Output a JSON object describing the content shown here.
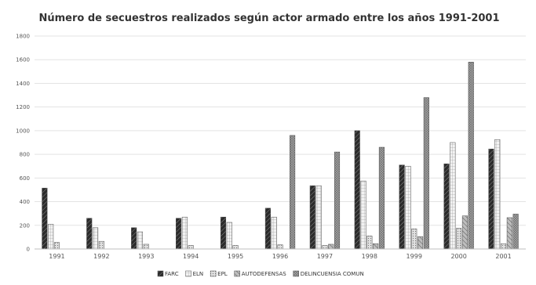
{
  "chart_data": {
    "type": "bar",
    "title": "Número de secuestros realizados según actor armado entre los años 1991-2001",
    "xlabel": "",
    "ylabel": "",
    "categories": [
      "1991",
      "1992",
      "1993",
      "1994",
      "1995",
      "1996",
      "1997",
      "1998",
      "1999",
      "2000",
      "2001"
    ],
    "ylim": [
      0,
      1800
    ],
    "yticks": [
      "0",
      "200",
      "400",
      "600",
      "800",
      "1000",
      "1200",
      "1400",
      "1600",
      "1800"
    ],
    "grid": true,
    "legend_position": "bottom",
    "series": [
      {
        "name": "FARC",
        "values": [
          515,
          260,
          180,
          260,
          270,
          345,
          535,
          1000,
          710,
          720,
          845
        ]
      },
      {
        "name": "ELN",
        "values": [
          210,
          180,
          145,
          270,
          225,
          270,
          535,
          575,
          700,
          900,
          925
        ]
      },
      {
        "name": "EPL",
        "values": [
          55,
          65,
          40,
          30,
          30,
          35,
          30,
          110,
          170,
          175,
          45
        ]
      },
      {
        "name": "AUTODEFENSAS",
        "values": [
          0,
          0,
          0,
          0,
          0,
          0,
          40,
          45,
          105,
          280,
          265
        ]
      },
      {
        "name": "DELINCUENSIA COMUN",
        "values": [
          0,
          0,
          0,
          0,
          0,
          960,
          820,
          860,
          1280,
          1580,
          295
        ]
      }
    ]
  }
}
